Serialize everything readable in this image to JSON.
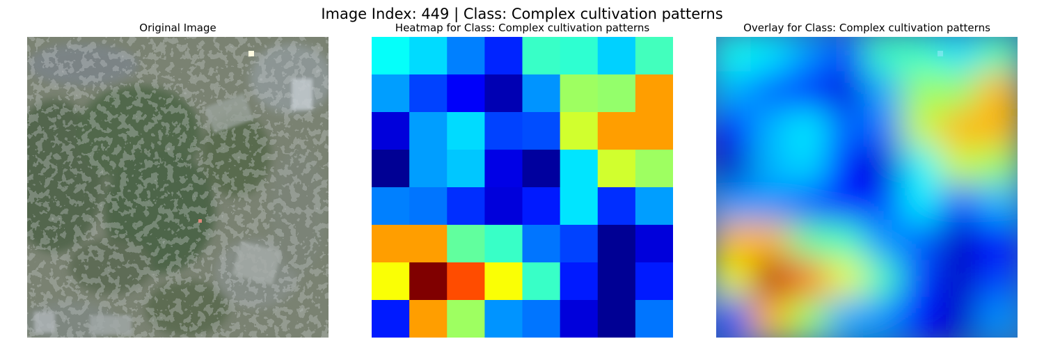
{
  "figure": {
    "suptitle": "Image Index: 449 | Class: Complex cultivation patterns"
  },
  "panels": [
    {
      "title": "Original Image"
    },
    {
      "title": "Heatmap for Class: Complex cultivation patterns"
    },
    {
      "title": "Overlay for Class: Complex cultivation patterns"
    }
  ],
  "chart_data": {
    "type": "heatmap",
    "colormap": "jet",
    "range": [
      0,
      1
    ],
    "axes": "off",
    "grid": [
      [
        0.38,
        0.34,
        0.25,
        0.16,
        0.43,
        0.42,
        0.33,
        0.44
      ],
      [
        0.28,
        0.19,
        0.12,
        0.05,
        0.27,
        0.53,
        0.52,
        0.72
      ],
      [
        0.09,
        0.28,
        0.34,
        0.19,
        0.2,
        0.58,
        0.72,
        0.72
      ],
      [
        0.02,
        0.28,
        0.32,
        0.1,
        0.03,
        0.35,
        0.58,
        0.53
      ],
      [
        0.25,
        0.24,
        0.17,
        0.09,
        0.15,
        0.35,
        0.17,
        0.28
      ],
      [
        0.72,
        0.72,
        0.47,
        0.43,
        0.24,
        0.19,
        0.02,
        0.09
      ],
      [
        0.62,
        1.0,
        0.8,
        0.62,
        0.43,
        0.15,
        0.02,
        0.15
      ],
      [
        0.15,
        0.72,
        0.53,
        0.27,
        0.24,
        0.09,
        0.02,
        0.24
      ]
    ]
  }
}
